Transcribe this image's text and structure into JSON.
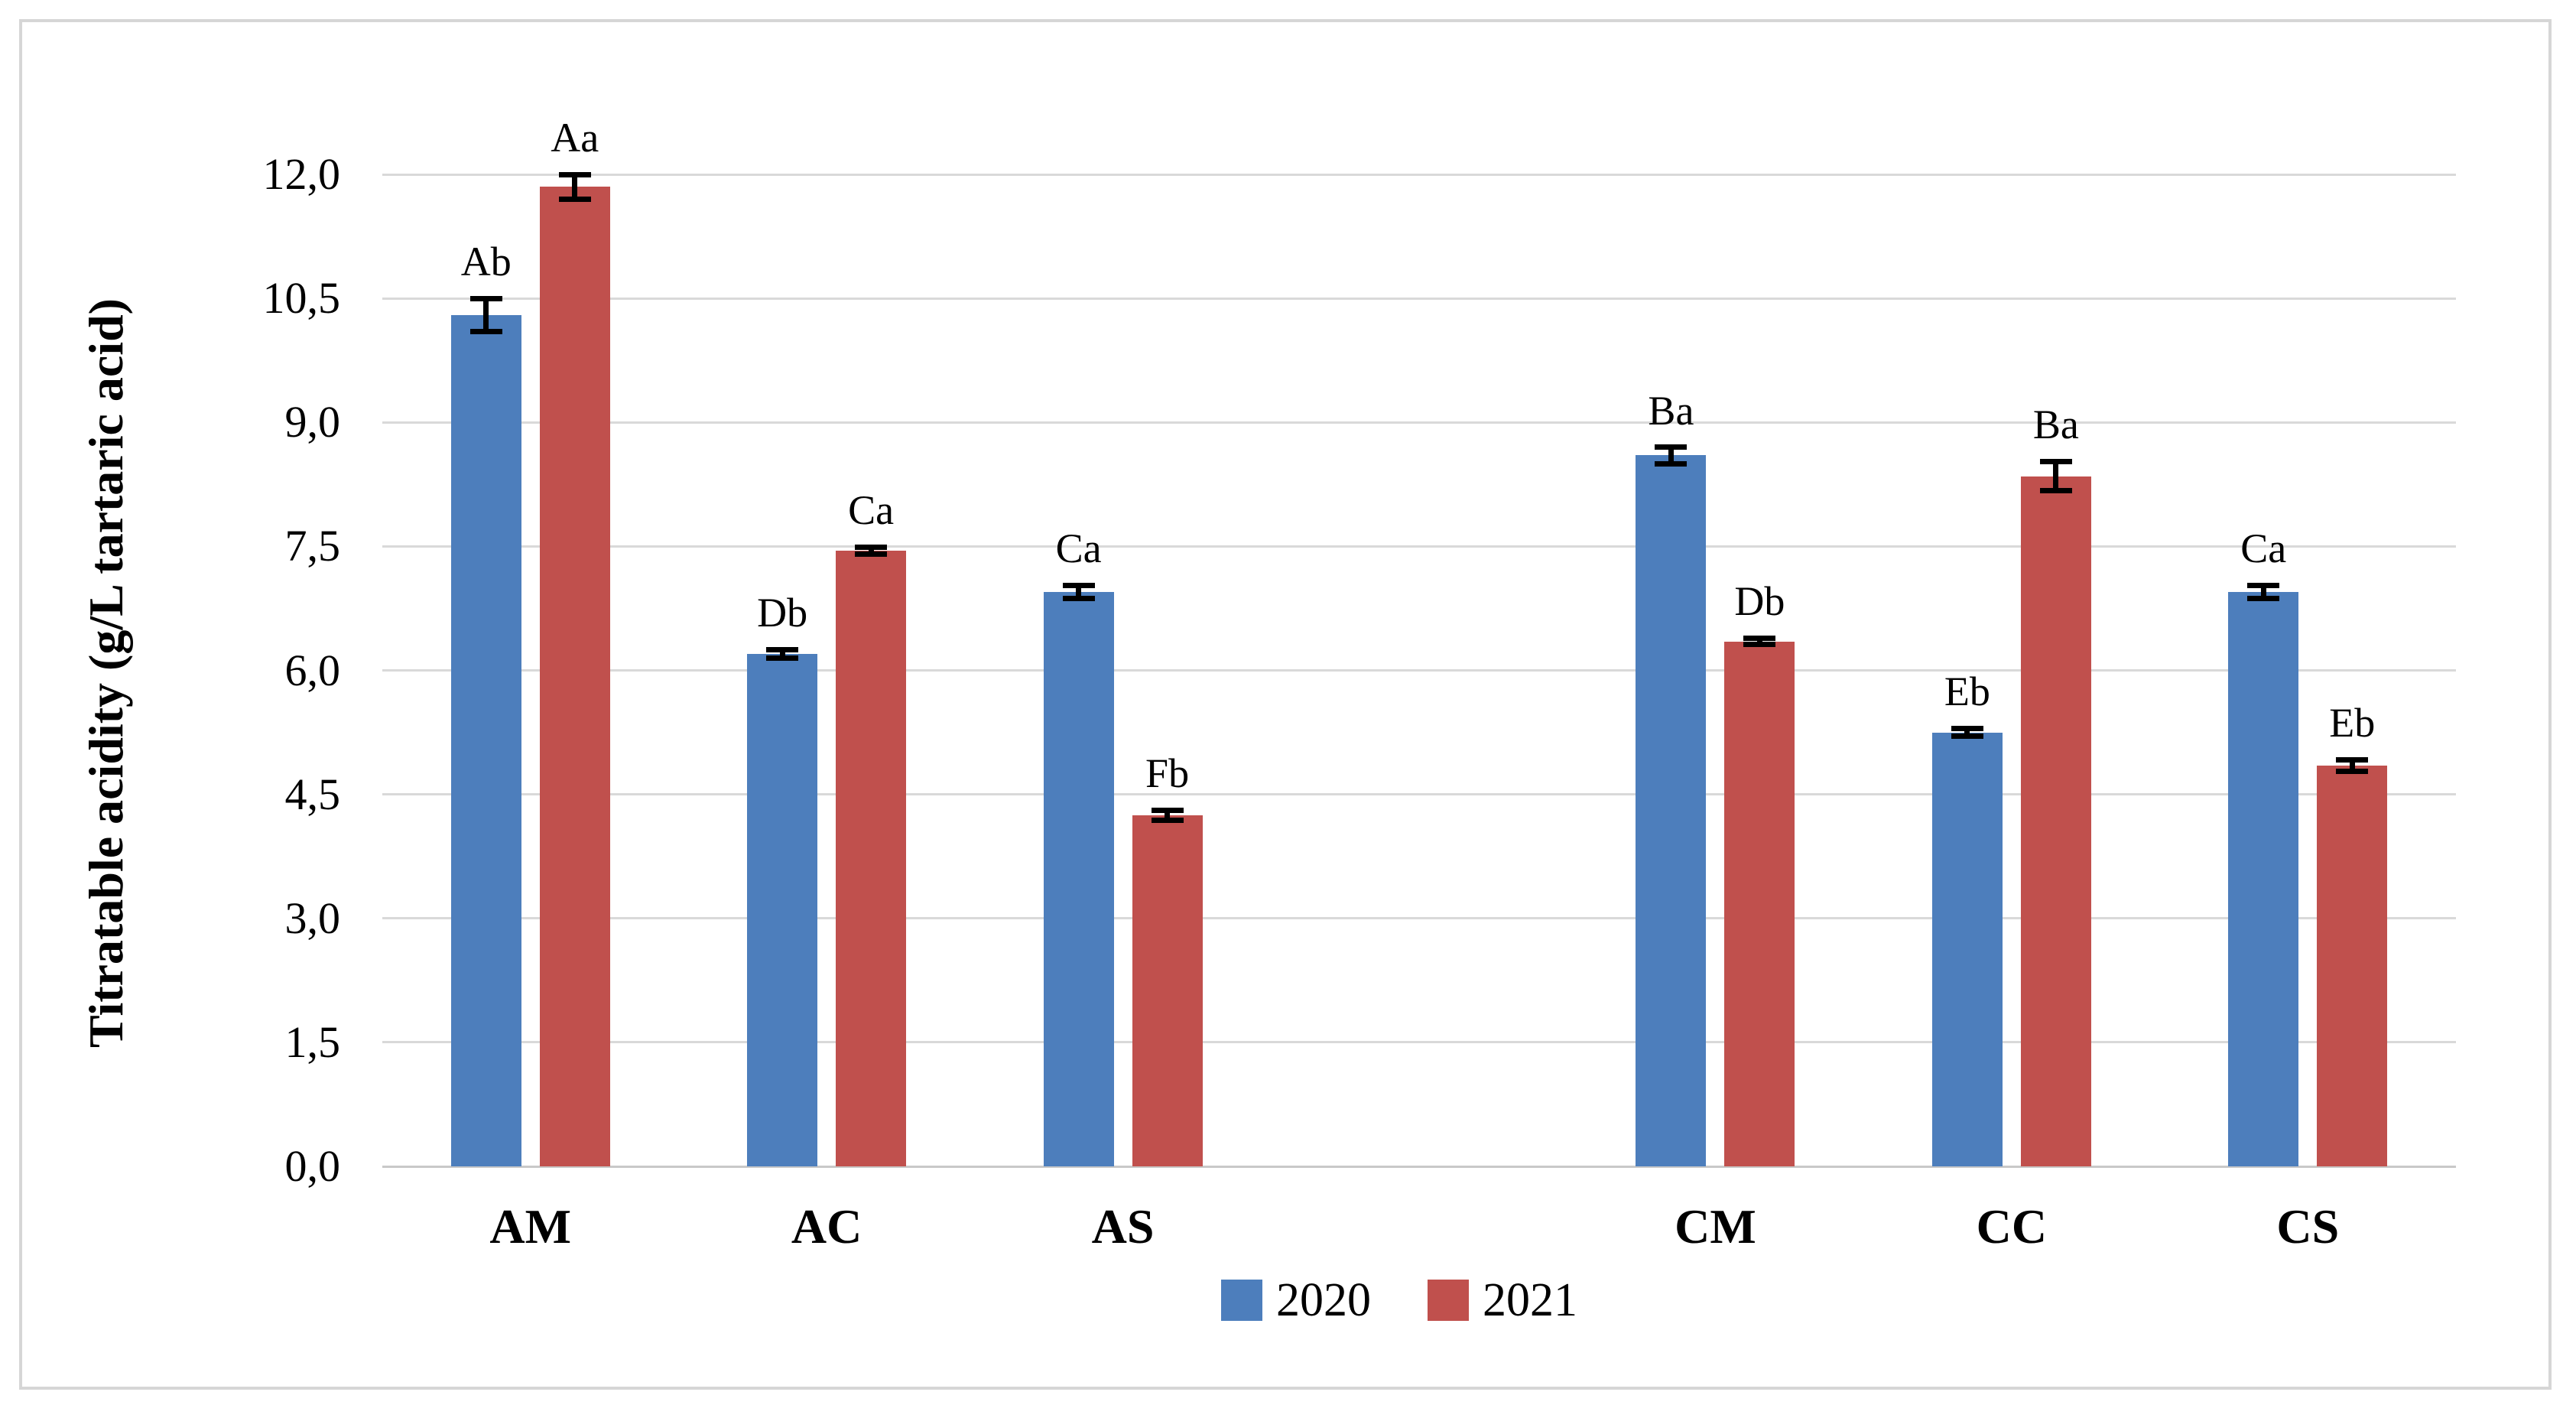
{
  "figure": {
    "background": "#FFFFFF",
    "border_color": "#D6D6D6"
  },
  "chart_data": {
    "type": "bar",
    "title": "",
    "xlabel": "",
    "ylabel": "Titratable acidity (g/L tartaric acid)",
    "ylim": [
      0,
      12
    ],
    "ytick_step": 1.5,
    "ytick_labels": [
      "0,0",
      "1,5",
      "3,0",
      "4,5",
      "6,0",
      "7,5",
      "9,0",
      "10,5",
      "12,0"
    ],
    "decimal_separator": ",",
    "grid": true,
    "gridline_color": "#D9D9D9",
    "axisline_color": "#C9C9C9",
    "error_bar_color": "#000000",
    "legend_position": "bottom-center",
    "categories": [
      "AM",
      "AC",
      "AS",
      "CM",
      "CC",
      "CS"
    ],
    "series": [
      {
        "name": "2020",
        "color": "#4D7EBC",
        "values": [
          10.3,
          6.2,
          6.95,
          8.6,
          5.25,
          6.95
        ],
        "errors": [
          0.2,
          0.05,
          0.08,
          0.1,
          0.05,
          0.08
        ],
        "point_labels": [
          "Ab",
          "Db",
          "Ca",
          "Ba",
          "Eb",
          "Ca"
        ]
      },
      {
        "name": "2021",
        "color": "#C0504D",
        "values": [
          11.85,
          7.45,
          4.25,
          6.35,
          8.35,
          4.85
        ],
        "errors": [
          0.15,
          0.04,
          0.06,
          0.04,
          0.18,
          0.07
        ],
        "point_labels": [
          "Aa",
          "Ca",
          "Fb",
          "Db",
          "Ba",
          "Eb"
        ]
      }
    ],
    "layout_hints": {
      "slot_count": 7,
      "category_slots": [
        0,
        1,
        2,
        4,
        5,
        6
      ],
      "group_gap_after": "AS"
    }
  }
}
